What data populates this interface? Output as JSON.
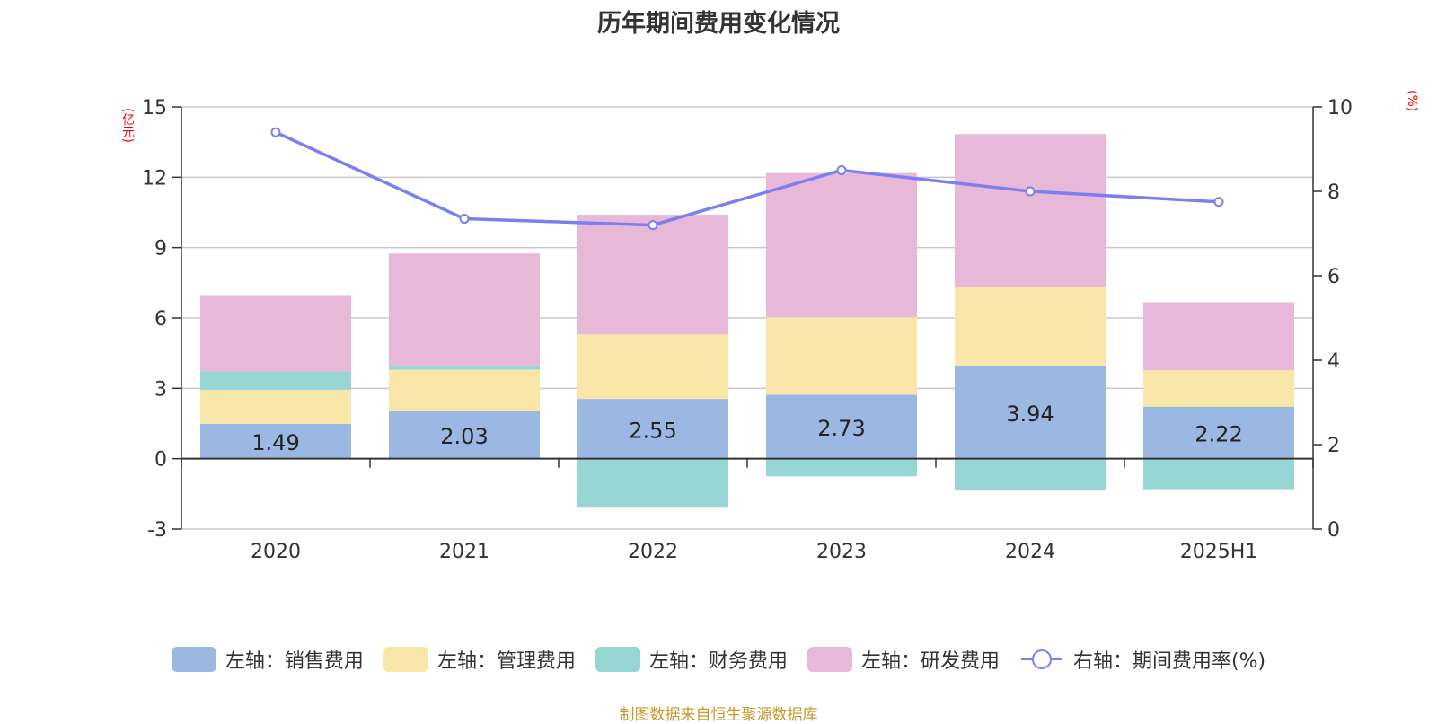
{
  "title": "历年期间费用变化情况",
  "colors": {
    "sales": "#9bb8e3",
    "admin": "#f8e7a8",
    "finance": "#98d5d5",
    "rnd": "#e8b8d9",
    "rate": "#7b7ff0",
    "unit_label": "#ff0000",
    "source": "#c59a2c",
    "grid": "#c8c8c8"
  },
  "source_text": "制图数据来自恒生聚源数据库",
  "chart_data": {
    "type": "bar",
    "stacked": true,
    "title": "历年期间费用变化情况",
    "categories": [
      "2020",
      "2021",
      "2022",
      "2023",
      "2024",
      "2025H1"
    ],
    "left_axis": {
      "unit": "(亿元)",
      "ylim": [
        -3,
        15
      ],
      "ticks": [
        "-3",
        "0",
        "3",
        "6",
        "9",
        "12",
        "15"
      ]
    },
    "right_axis": {
      "unit": "(%)",
      "ylim": [
        0,
        10
      ],
      "ticks": [
        "0",
        "2",
        "4",
        "6",
        "8",
        "10"
      ]
    },
    "grid": true,
    "legend_position": "bottom",
    "series": [
      {
        "name": "左轴：销售费用",
        "key": "sales",
        "axis": "left",
        "values": [
          1.49,
          2.03,
          2.55,
          2.73,
          3.94,
          2.22
        ],
        "labels": [
          "1.49",
          "2.03",
          "2.55",
          "2.73",
          "3.94",
          "2.22"
        ]
      },
      {
        "name": "左轴：管理费用",
        "key": "admin",
        "axis": "left",
        "values": [
          1.45,
          1.77,
          2.75,
          3.3,
          3.4,
          1.55
        ]
      },
      {
        "name": "左轴：财务费用",
        "key": "finance",
        "axis": "left",
        "values": [
          0.78,
          0.18,
          -2.05,
          -0.75,
          -1.35,
          -1.3
        ]
      },
      {
        "name": "左轴：研发费用",
        "key": "rnd",
        "axis": "left",
        "values": [
          3.26,
          4.77,
          5.1,
          6.15,
          6.5,
          2.9
        ]
      },
      {
        "name": "右轴：期间费用率(%)",
        "key": "rate",
        "axis": "right",
        "type": "line",
        "values": [
          9.4,
          7.35,
          7.2,
          8.5,
          8.0,
          7.75
        ]
      }
    ]
  }
}
